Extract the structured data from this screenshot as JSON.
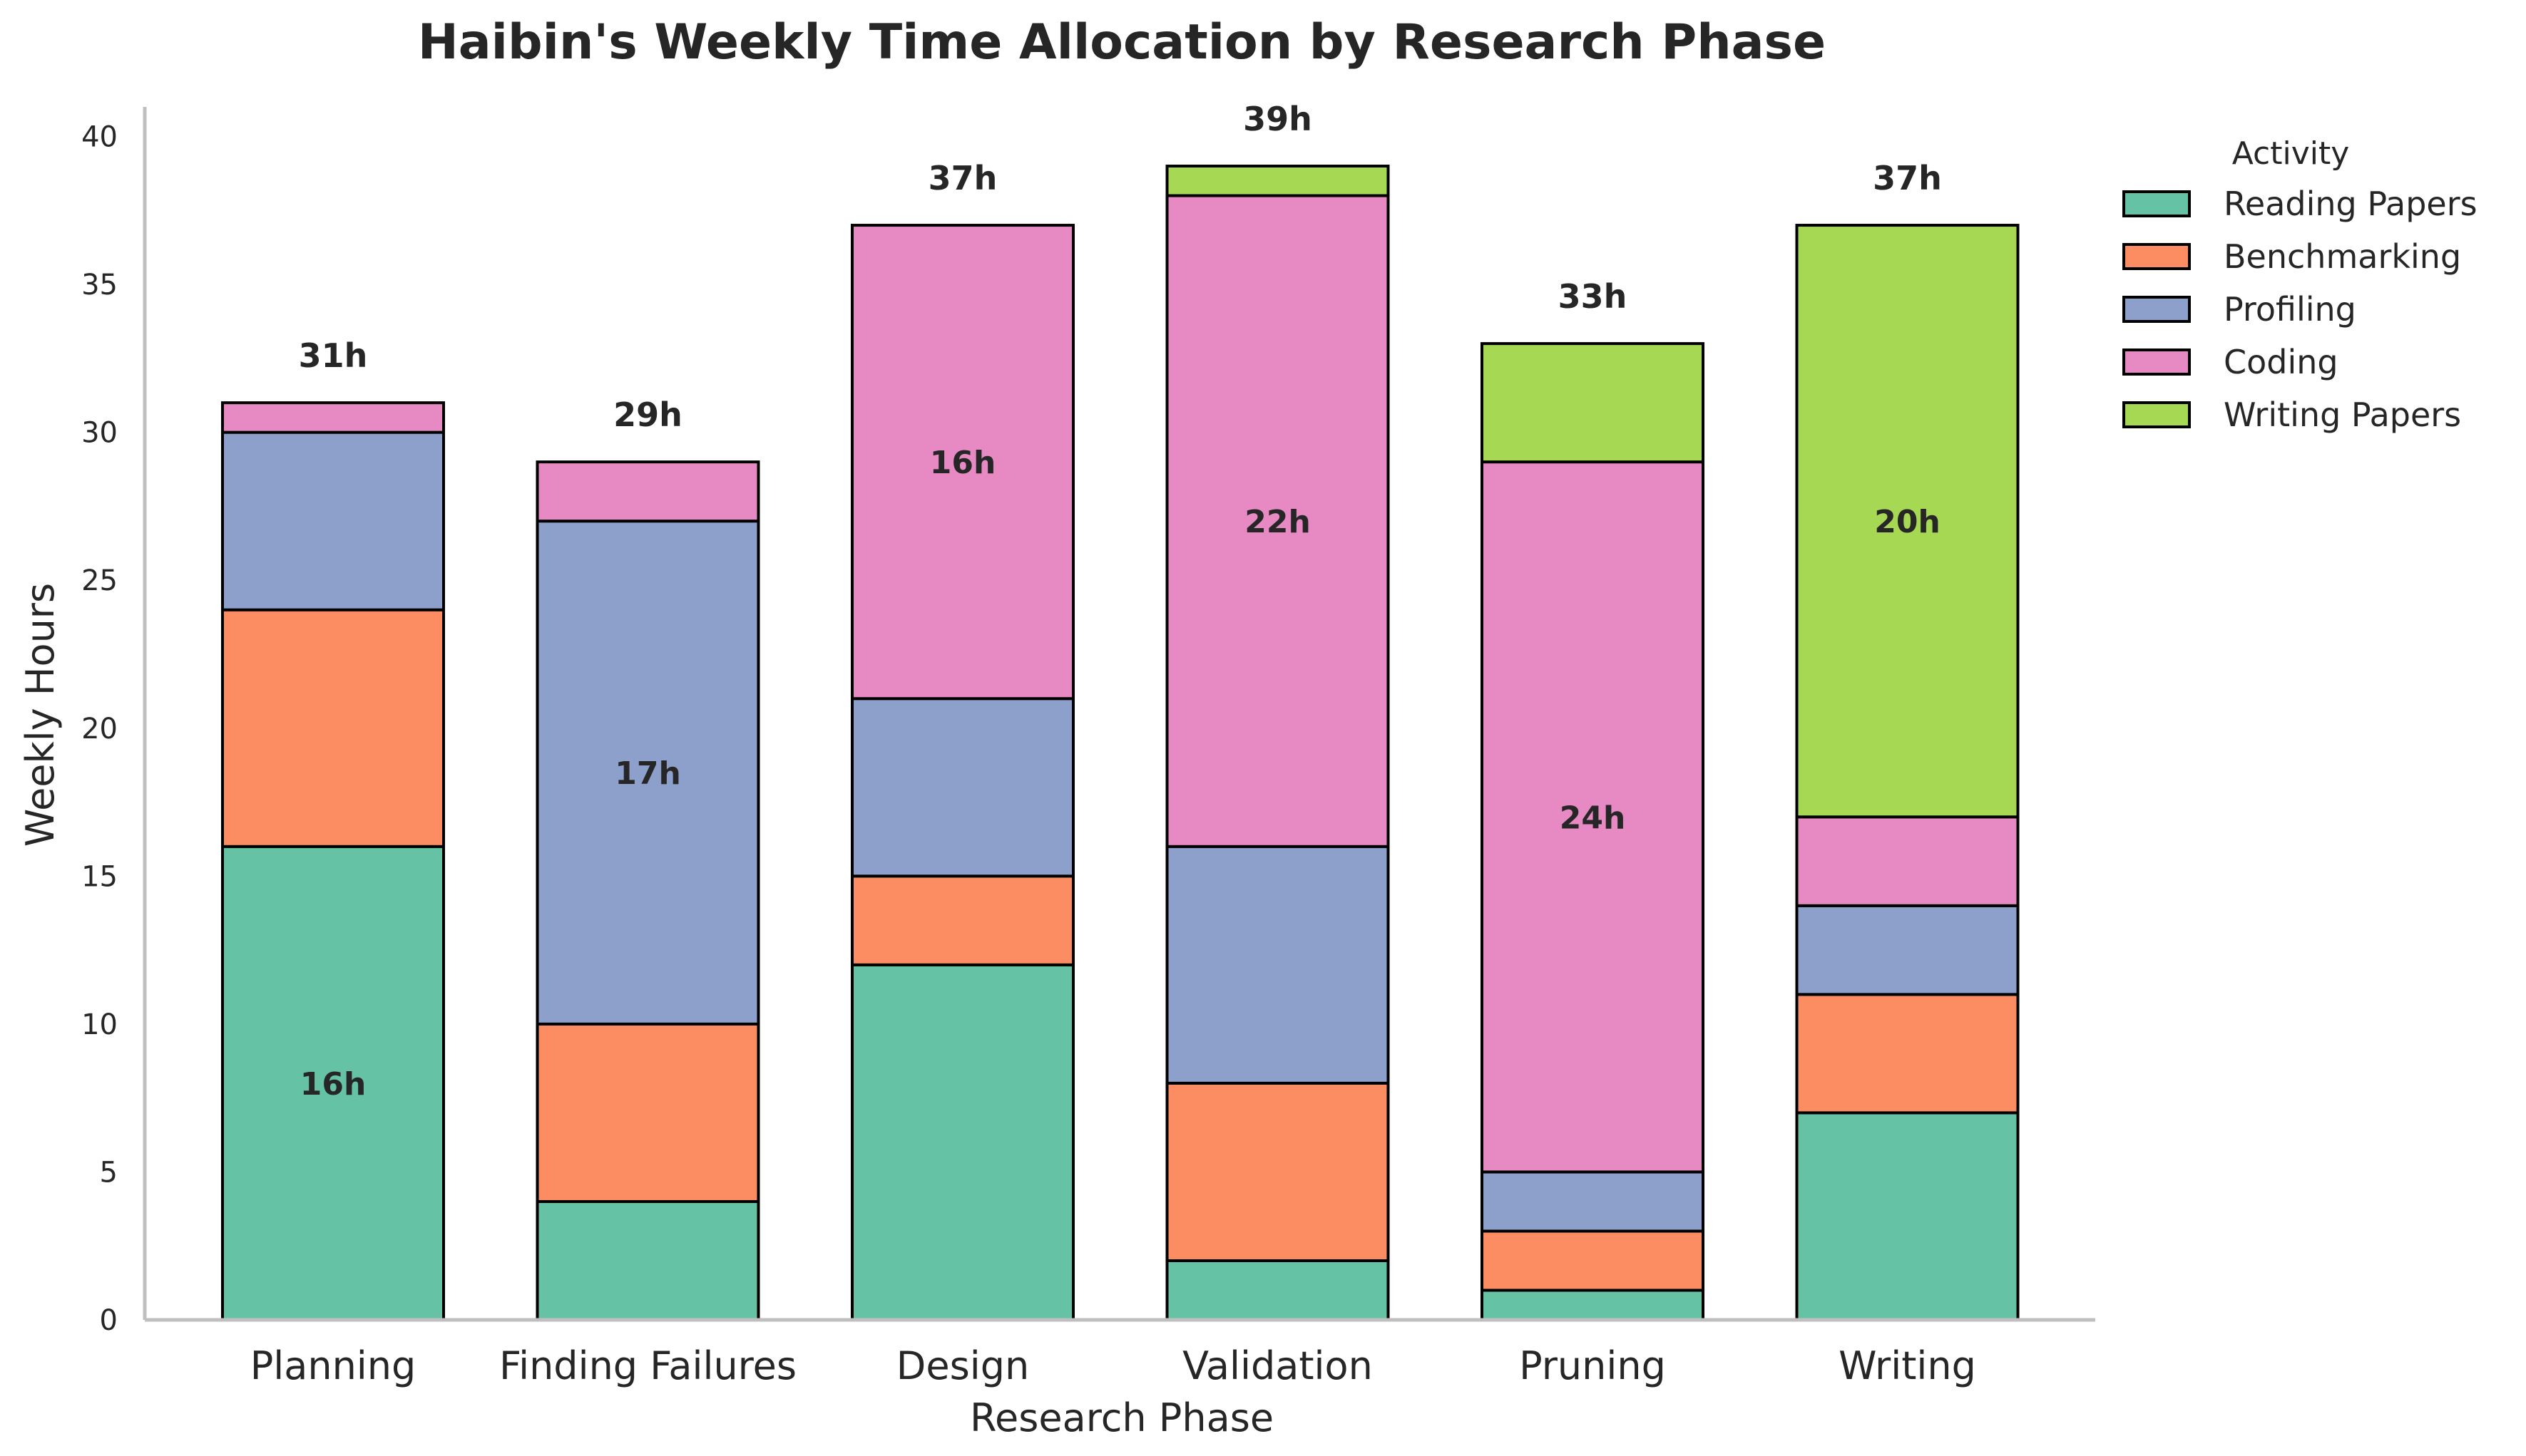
{
  "chart_data": {
    "type": "bar",
    "stacked": true,
    "title": "Haibin's Weekly Time Allocation by Research Phase",
    "xlabel": "Research Phase",
    "ylabel": "Weekly Hours",
    "ylim": [
      0,
      41
    ],
    "yticks": [
      0,
      5,
      10,
      15,
      20,
      25,
      30,
      35,
      40
    ],
    "grid": false,
    "categories": [
      "Planning",
      "Finding Failures",
      "Design",
      "Validation",
      "Pruning",
      "Writing"
    ],
    "series": [
      {
        "name": "Reading Papers",
        "color": "#66c2a5",
        "values": [
          16,
          4,
          12,
          2,
          1,
          7
        ]
      },
      {
        "name": "Benchmarking",
        "color": "#fc8d62",
        "values": [
          8,
          6,
          3,
          6,
          2,
          4
        ]
      },
      {
        "name": "Profiling",
        "color": "#8da0cb",
        "values": [
          6,
          17,
          6,
          8,
          2,
          3
        ]
      },
      {
        "name": "Coding",
        "color": "#e78ac3",
        "values": [
          1,
          2,
          16,
          22,
          24,
          3
        ]
      },
      {
        "name": "Writing Papers",
        "color": "#a6d854",
        "values": [
          0,
          0,
          0,
          1,
          4,
          20
        ]
      }
    ],
    "totals": [
      "31h",
      "29h",
      "37h",
      "39h",
      "33h",
      "37h"
    ],
    "segment_labels": [
      {
        "category": "Planning",
        "series": "Reading Papers",
        "text": "16h"
      },
      {
        "category": "Finding Failures",
        "series": "Profiling",
        "text": "17h"
      },
      {
        "category": "Design",
        "series": "Coding",
        "text": "16h"
      },
      {
        "category": "Validation",
        "series": "Coding",
        "text": "22h"
      },
      {
        "category": "Pruning",
        "series": "Coding",
        "text": "24h"
      },
      {
        "category": "Writing",
        "series": "Writing Papers",
        "text": "20h"
      }
    ],
    "legend": {
      "title": "Activity",
      "placement": "outside-top-right"
    }
  }
}
